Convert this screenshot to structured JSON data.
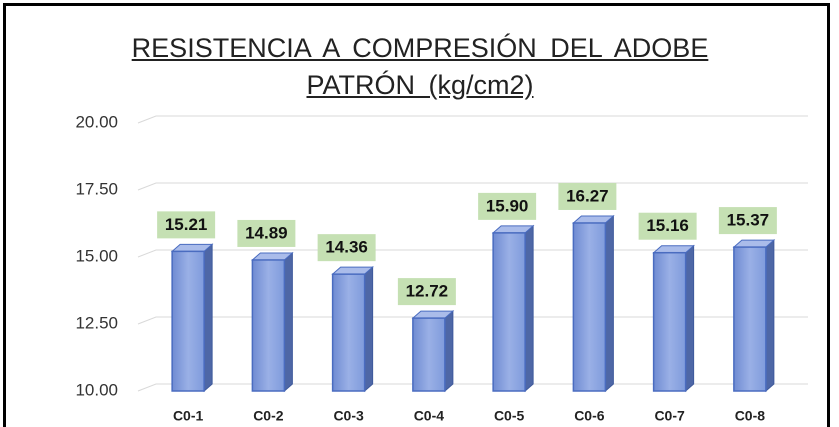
{
  "chart_data": {
    "type": "bar",
    "title": "RESISTENCIA A COMPRESIÓN DEL ADOBE PATRÓN (kg/cm2)",
    "categories": [
      "C0-1",
      "C0-2",
      "C0-3",
      "C0-4",
      "C0-5",
      "C0-6",
      "C0-7",
      "C0-8"
    ],
    "values": [
      15.21,
      14.89,
      14.36,
      12.72,
      15.9,
      16.27,
      15.16,
      15.37
    ],
    "value_labels": [
      "15.21",
      "14.89",
      "14.36",
      "12.72",
      "15.90",
      "16.27",
      "15.16",
      "15.37"
    ],
    "color": "#7f9bdc",
    "ylim": [
      10,
      20
    ],
    "yticks": [
      {
        "value": 10,
        "label": "10.00"
      },
      {
        "value": 12.5,
        "label": "12.50"
      },
      {
        "value": 15,
        "label": "15.00"
      },
      {
        "value": 17.5,
        "label": "17.50"
      },
      {
        "value": 20,
        "label": "20.00"
      }
    ],
    "grid": true
  }
}
